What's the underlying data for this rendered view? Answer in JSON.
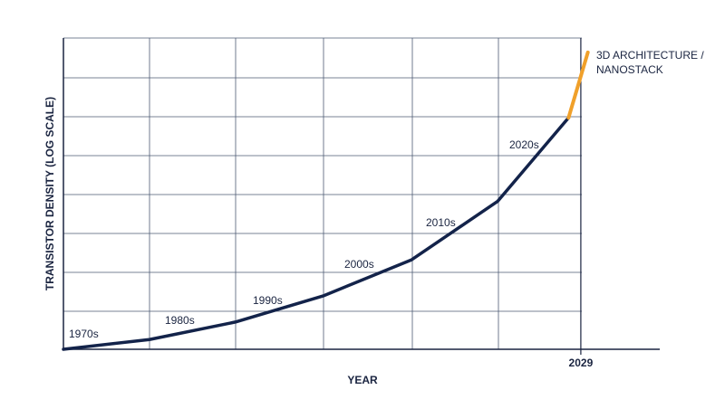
{
  "chart_data": {
    "type": "line",
    "x_label": "YEAR",
    "y_label": "TRANSISTOR DENSITY (LOG SCALE)",
    "log_scale": true,
    "xlim": [
      1970,
      2038
    ],
    "xticks": [
      2029
    ],
    "ylim": [
      0,
      8
    ],
    "series": [
      {
        "color": "#13234a",
        "x": [
          1970,
          1979.8,
          1989.6,
          1999.6,
          2009.7,
          2019.5,
          2027.6
        ],
        "values": [
          0,
          0.25,
          0.7,
          1.37,
          2.3,
          3.8,
          5.95
        ]
      },
      {
        "color": "#f0a02a",
        "x": [
          2027.6,
          2029.8
        ],
        "values": [
          5.95,
          7.63
        ]
      }
    ],
    "annotations": [
      "1970s",
      "1980s",
      "1990s",
      "2000s",
      "2010s",
      "2020s"
    ],
    "end_label": [
      "3D ARCHITECTURE /",
      "NANOSTACK"
    ]
  }
}
